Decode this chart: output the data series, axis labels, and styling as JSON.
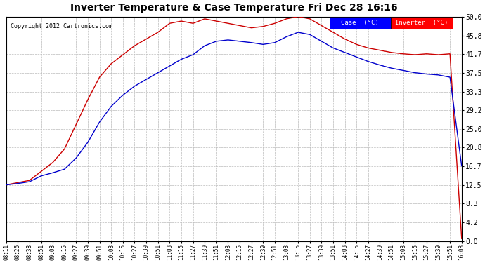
{
  "title": "Inverter Temperature & Case Temperature Fri Dec 28 16:16",
  "copyright": "Copyright 2012 Cartronics.com",
  "legend_labels": [
    "Case  (°C)",
    "Inverter  (°C)"
  ],
  "yticks": [
    0.0,
    4.2,
    8.3,
    12.5,
    16.7,
    20.8,
    25.0,
    29.2,
    33.3,
    37.5,
    41.7,
    45.8,
    50.0
  ],
  "ylim": [
    0.0,
    50.0
  ],
  "bg_color": "#ffffff",
  "plot_bg_color": "#ffffff",
  "grid_color": "#cccccc",
  "blue_line_color": "#0000cc",
  "red_line_color": "#cc0000",
  "xtick_labels": [
    "08:11",
    "08:26",
    "08:38",
    "08:51",
    "09:03",
    "09:15",
    "09:27",
    "09:39",
    "09:51",
    "10:03",
    "10:15",
    "10:27",
    "10:39",
    "10:51",
    "11:03",
    "11:15",
    "11:27",
    "11:39",
    "11:51",
    "12:03",
    "12:15",
    "12:27",
    "12:39",
    "12:51",
    "13:03",
    "13:15",
    "13:27",
    "13:39",
    "13:51",
    "14:03",
    "14:15",
    "14:27",
    "14:39",
    "14:51",
    "15:03",
    "15:15",
    "15:27",
    "15:39",
    "15:51",
    "16:03"
  ],
  "blue_data": [
    12.5,
    12.8,
    13.2,
    14.5,
    15.2,
    16.0,
    18.5,
    22.0,
    26.5,
    30.0,
    32.5,
    34.5,
    36.0,
    37.5,
    39.0,
    40.5,
    41.5,
    43.5,
    44.5,
    44.8,
    44.5,
    44.2,
    43.8,
    44.2,
    45.5,
    46.5,
    46.0,
    44.5,
    43.0,
    42.0,
    41.0,
    40.0,
    39.2,
    38.5,
    38.0,
    37.5,
    37.2,
    37.0,
    36.5,
    16.7
  ],
  "red_data": [
    12.5,
    13.0,
    13.5,
    15.5,
    17.5,
    20.5,
    26.0,
    31.5,
    36.5,
    39.5,
    41.5,
    43.5,
    45.0,
    46.5,
    48.5,
    49.0,
    48.5,
    49.5,
    49.0,
    48.5,
    48.0,
    47.5,
    47.8,
    48.5,
    49.5,
    50.0,
    49.5,
    48.0,
    46.5,
    45.0,
    43.8,
    43.0,
    42.5,
    42.0,
    41.7,
    41.5,
    41.7,
    41.5,
    41.7,
    0.5
  ]
}
